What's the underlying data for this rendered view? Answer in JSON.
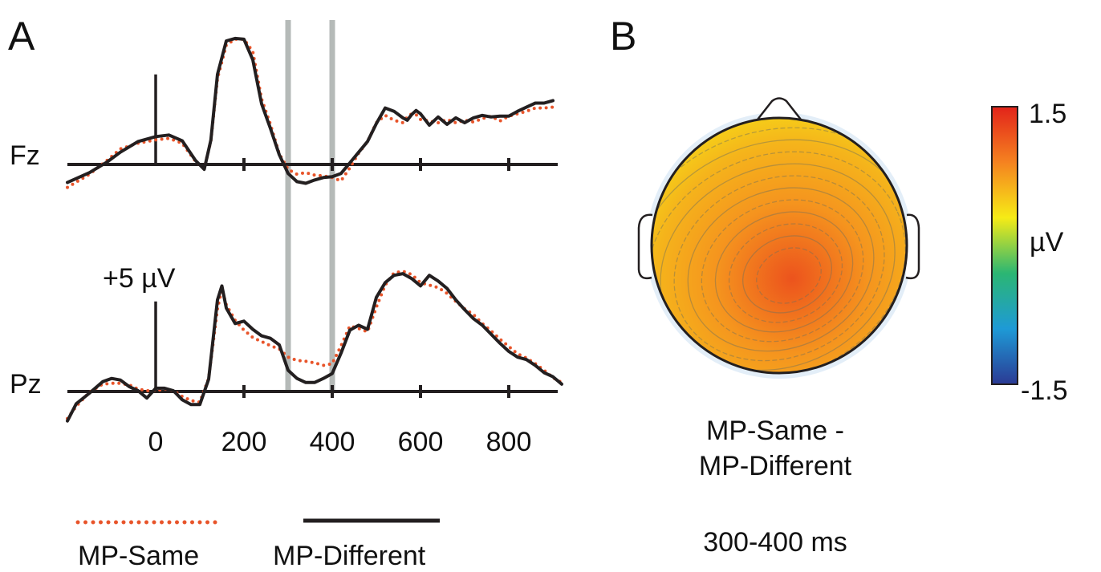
{
  "panels": {
    "a_label": "A",
    "b_label": "B"
  },
  "colors": {
    "mp_same": "#e8542a",
    "mp_different": "#231f20",
    "axis": "#231f20",
    "window": "#b5bab8"
  },
  "chart_data": [
    {
      "type": "line",
      "panel": "A",
      "x_unit": "ms",
      "xlim": [
        -200,
        920
      ],
      "x_ticks": [
        0,
        200,
        400,
        600,
        800
      ],
      "x_tick_labels": [
        "0",
        "200",
        "400",
        "600",
        "800"
      ],
      "scale_bar": {
        "label": "+5 µV",
        "value_uv": 5
      },
      "highlight_window_ms": [
        300,
        400
      ],
      "legend": [
        {
          "name": "MP-Same",
          "style": "dotted"
        },
        {
          "name": "MP-Different",
          "style": "solid"
        }
      ],
      "channels": [
        {
          "name": "Fz",
          "series": [
            {
              "name": "MP-Different",
              "x": [
                -200,
                -150,
                -110,
                -80,
                -40,
                0,
                30,
                60,
                90,
                110,
                125,
                140,
                160,
                180,
                200,
                220,
                240,
                260,
                280,
                300,
                320,
                340,
                360,
                380,
                400,
                420,
                440,
                460,
                480,
                500,
                520,
                540,
                560,
                570,
                580,
                590,
                600,
                620,
                640,
                660,
                680,
                700,
                720,
                740,
                760,
                780,
                800,
                820,
                840,
                860,
                880,
                900
              ],
              "y": [
                -2.2,
                -1,
                0.3,
                1.5,
                2.8,
                3.4,
                3.6,
                2.9,
                0.5,
                -0.6,
                3,
                11,
                15.1,
                15.4,
                15.3,
                12.8,
                7.4,
                4.4,
                1.2,
                -1.1,
                -2.1,
                -2.3,
                -1.9,
                -1.6,
                -1.5,
                -1.1,
                0.2,
                1.5,
                2.8,
                5,
                6.9,
                6.5,
                5.7,
                5.4,
                6.1,
                6.6,
                6.2,
                4.8,
                5.8,
                4.9,
                5.7,
                5.1,
                5.7,
                6,
                5.8,
                5.9,
                5.9,
                6.5,
                7,
                7.5,
                7.5,
                7.8
              ]
            },
            {
              "name": "MP-Same",
              "x": [
                -200,
                -150,
                -110,
                -80,
                -40,
                0,
                30,
                60,
                90,
                110,
                125,
                140,
                160,
                180,
                200,
                220,
                240,
                260,
                280,
                300,
                320,
                340,
                360,
                380,
                400,
                420,
                440,
                460,
                480,
                500,
                520,
                540,
                560,
                570,
                580,
                590,
                600,
                620,
                640,
                660,
                680,
                700,
                720,
                740,
                760,
                780,
                800,
                820,
                840,
                860,
                880,
                900
              ],
              "y": [
                -2.8,
                -1.2,
                0.5,
                1.9,
                2.6,
                3,
                3.2,
                2.6,
                0.4,
                -0.5,
                2.9,
                10.5,
                14.6,
                15.3,
                15.3,
                13.8,
                8,
                4.9,
                1.3,
                -0.6,
                -1.2,
                -1,
                -1.3,
                -1.4,
                -1.6,
                -2,
                -0.4,
                1.4,
                2.8,
                5.1,
                6,
                5.4,
                5.1,
                5.8,
                6.2,
                6.1,
                5.5,
                5.3,
                5.1,
                5.5,
                5.1,
                5.4,
                5.2,
                5.6,
                5.9,
                5.3,
                5.9,
                6.2,
                6.5,
                6.9,
                6.9,
                7
              ]
            }
          ]
        },
        {
          "name": "Pz",
          "series": [
            {
              "name": "MP-Different",
              "x": [
                -200,
                -180,
                -150,
                -120,
                -100,
                -80,
                -60,
                -40,
                -20,
                0,
                20,
                40,
                60,
                80,
                100,
                120,
                140,
                150,
                160,
                180,
                200,
                220,
                240,
                260,
                280,
                300,
                320,
                340,
                360,
                380,
                400,
                420,
                440,
                460,
                480,
                500,
                520,
                540,
                560,
                580,
                600,
                620,
                640,
                660,
                680,
                700,
                720,
                740,
                760,
                780,
                800,
                820,
                840,
                860,
                880,
                900,
                920
              ],
              "y": [
                -3.6,
                -1.5,
                -0.2,
                1.2,
                1.6,
                1.4,
                0.6,
                0.1,
                -0.8,
                0.4,
                0.4,
                0.1,
                -1,
                -1.6,
                -1.6,
                1.5,
                11.2,
                12.9,
                10.2,
                8.3,
                8.6,
                7.6,
                6.8,
                6.5,
                5.7,
                2.6,
                1.6,
                1.1,
                1.1,
                1.6,
                2.2,
                4.7,
                7.5,
                8.1,
                7.6,
                11.5,
                13.3,
                14.2,
                14.4,
                13.8,
                12.9,
                14.2,
                13.5,
                12.6,
                11.2,
                10,
                8.9,
                8.1,
                7,
                5.9,
                4.9,
                4.2,
                3.9,
                3.2,
                2.3,
                1.8,
                0.9
              ]
            },
            {
              "name": "MP-Same",
              "x": [
                -200,
                -180,
                -150,
                -120,
                -100,
                -80,
                -60,
                -40,
                -20,
                0,
                20,
                40,
                60,
                80,
                100,
                120,
                140,
                150,
                160,
                180,
                200,
                220,
                240,
                260,
                280,
                300,
                320,
                340,
                360,
                380,
                400,
                420,
                440,
                460,
                480,
                500,
                520,
                540,
                560,
                580,
                600,
                620,
                640,
                660,
                680,
                700,
                720,
                740,
                760,
                780,
                800,
                820,
                840,
                860,
                880,
                900,
                920
              ],
              "y": [
                -3.3,
                -1.8,
                -0.1,
                0.9,
                1,
                1,
                0.8,
                0.3,
                0.1,
                0.1,
                0.3,
                0.1,
                -0.6,
                -1.1,
                -1.3,
                1.6,
                10.1,
                12.5,
                10.6,
                8.7,
                7.5,
                6.6,
                6.1,
                5.6,
                5.2,
                4.2,
                3.8,
                3.7,
                3.5,
                3.2,
                3.4,
                5.6,
                8,
                7.7,
                7.3,
                10.3,
                13,
                14.5,
                14.7,
                14.3,
                13.3,
                13,
                12.7,
                12,
                11,
                10.1,
                9.4,
                8.3,
                7.4,
                6.4,
                5.5,
                4.6,
                4.1,
                3.4,
                2.6,
                1.7,
                1.1
              ]
            }
          ]
        }
      ]
    },
    {
      "type": "heatmap",
      "panel": "B",
      "subtype": "scalp topography",
      "caption_lines": [
        "MP-Same -",
        "MP-Different"
      ],
      "time_window_label": "300-400 ms",
      "colorbar": {
        "max_label": "1.5",
        "min_label": "-1.5",
        "unit": "µV",
        "range": [
          -1.5,
          1.5
        ],
        "colors": [
          "#2b3a94",
          "#1e9ad6",
          "#2bb673",
          "#f6eb16",
          "#f58220",
          "#e2231a"
        ]
      },
      "value_range_shown": [
        0.3,
        1.2
      ],
      "maximum_region": "centro-parietal, slightly right",
      "minimum_region": "frontal, left"
    }
  ]
}
